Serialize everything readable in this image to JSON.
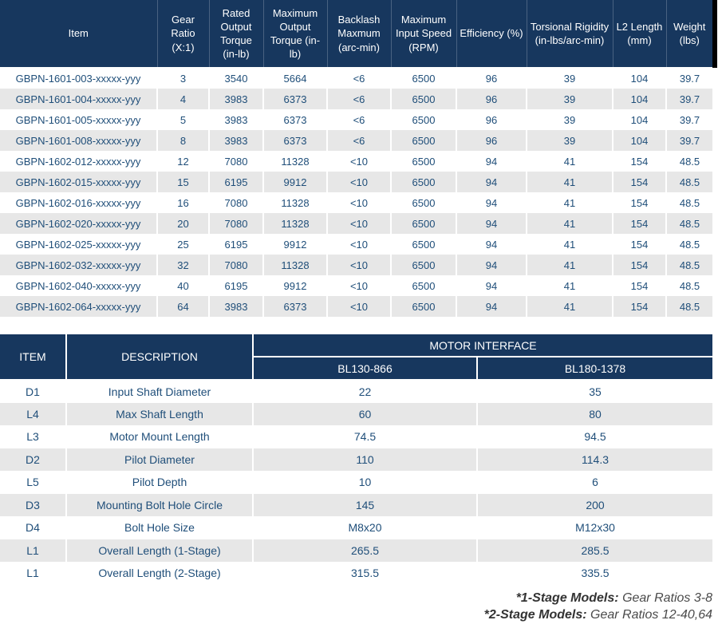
{
  "colors": {
    "header_bg": "#17375E",
    "body_text": "#1F4E79",
    "alt_row_bg": "#E7E7E7",
    "edge_bar": "#000000",
    "header_text": "#FFFFFF"
  },
  "spec_table": {
    "columns": [
      "Item",
      "Gear Ratio (X:1)",
      "Rated Output Torque (in-lb)",
      "Maximum Output Torque (in-lb)",
      "Backlash Maxmum (arc-min)",
      "Maximum Input Speed (RPM)",
      "Efficiency (%)",
      "Torsional Rigidity (in-lbs/arc-min)",
      "L2 Length (mm)",
      "Weight (lbs)"
    ],
    "rows": [
      [
        "GBPN-1601-003-xxxxx-yyy",
        "3",
        "3540",
        "5664",
        "<6",
        "6500",
        "96",
        "39",
        "104",
        "39.7"
      ],
      [
        "GBPN-1601-004-xxxxx-yyy",
        "4",
        "3983",
        "6373",
        "<6",
        "6500",
        "96",
        "39",
        "104",
        "39.7"
      ],
      [
        "GBPN-1601-005-xxxxx-yyy",
        "5",
        "3983",
        "6373",
        "<6",
        "6500",
        "96",
        "39",
        "104",
        "39.7"
      ],
      [
        "GBPN-1601-008-xxxxx-yyy",
        "8",
        "3983",
        "6373",
        "<6",
        "6500",
        "96",
        "39",
        "104",
        "39.7"
      ],
      [
        "GBPN-1602-012-xxxxx-yyy",
        "12",
        "7080",
        "11328",
        "<10",
        "6500",
        "94",
        "41",
        "154",
        "48.5"
      ],
      [
        "GBPN-1602-015-xxxxx-yyy",
        "15",
        "6195",
        "9912",
        "<10",
        "6500",
        "94",
        "41",
        "154",
        "48.5"
      ],
      [
        "GBPN-1602-016-xxxxx-yyy",
        "16",
        "7080",
        "11328",
        "<10",
        "6500",
        "94",
        "41",
        "154",
        "48.5"
      ],
      [
        "GBPN-1602-020-xxxxx-yyy",
        "20",
        "7080",
        "11328",
        "<10",
        "6500",
        "94",
        "41",
        "154",
        "48.5"
      ],
      [
        "GBPN-1602-025-xxxxx-yyy",
        "25",
        "6195",
        "9912",
        "<10",
        "6500",
        "94",
        "41",
        "154",
        "48.5"
      ],
      [
        "GBPN-1602-032-xxxxx-yyy",
        "32",
        "7080",
        "11328",
        "<10",
        "6500",
        "94",
        "41",
        "154",
        "48.5"
      ],
      [
        "GBPN-1602-040-xxxxx-yyy",
        "40",
        "6195",
        "9912",
        "<10",
        "6500",
        "94",
        "41",
        "154",
        "48.5"
      ],
      [
        "GBPN-1602-064-xxxxx-yyy",
        "64",
        "3983",
        "6373",
        "<10",
        "6500",
        "94",
        "41",
        "154",
        "48.5"
      ]
    ]
  },
  "interface_table": {
    "item_header": "ITEM",
    "description_header": "DESCRIPTION",
    "group_header": "MOTOR INTERFACE",
    "model_headers": [
      "BL130-866",
      "BL180-1378"
    ],
    "rows": [
      [
        "D1",
        "Input Shaft Diameter",
        "22",
        "35"
      ],
      [
        "L4",
        "Max Shaft Length",
        "60",
        "80"
      ],
      [
        "L3",
        "Motor Mount Length",
        "74.5",
        "94.5"
      ],
      [
        "D2",
        "Pilot Diameter",
        "110",
        "114.3"
      ],
      [
        "L5",
        "Pilot Depth",
        "10",
        "6"
      ],
      [
        "D3",
        "Mounting Bolt Hole Circle",
        "145",
        "200"
      ],
      [
        "D4",
        "Bolt Hole Size",
        "M8x20",
        "M12x30"
      ],
      [
        "L1",
        "Overall Length (1-Stage)",
        "265.5",
        "285.5"
      ],
      [
        "L1",
        "Overall Length (2-Stage)",
        "315.5",
        "335.5"
      ]
    ]
  },
  "notes": [
    {
      "bold": "*1-Stage Models:",
      "regular": "Gear Ratios 3-8"
    },
    {
      "bold": "*2-Stage Models:",
      "regular": "Gear Ratios 12-40,64"
    }
  ]
}
